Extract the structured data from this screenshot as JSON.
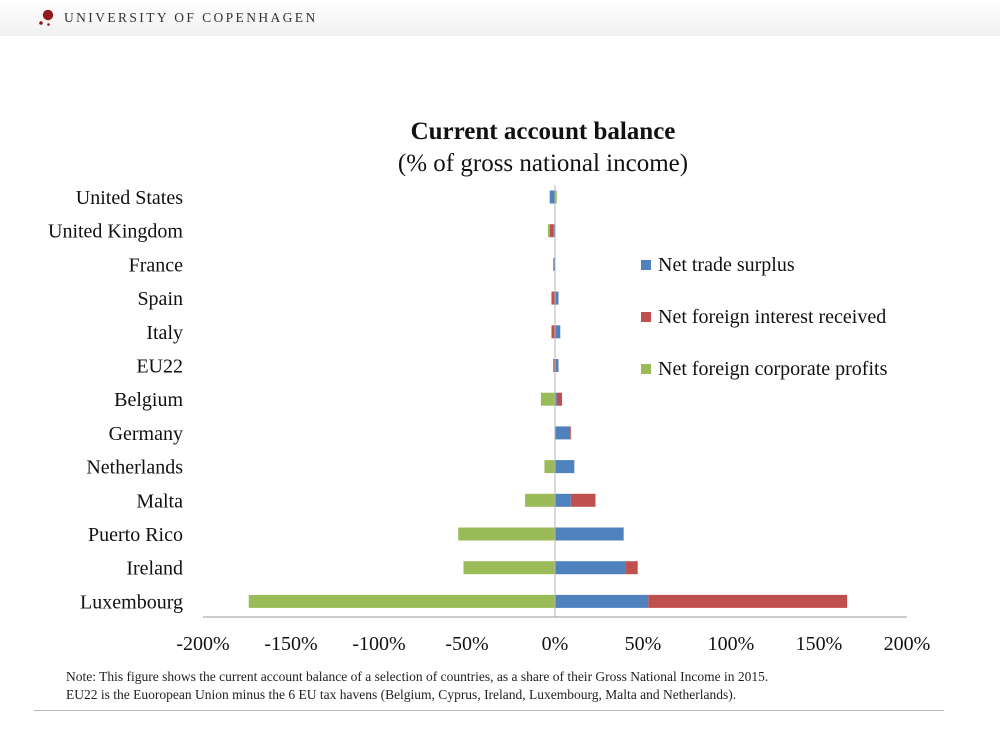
{
  "header": {
    "institution": "UNIVERSITY OF COPENHAGEN",
    "logo_icon": "university-seal-icon"
  },
  "note": {
    "line1": "Note:  This figure shows the current account balance of a selection of countries, as a share of their Gross National Income in 2015.",
    "line2": "EU22 is the Euoropean Union minus the 6 EU tax havens (Belgium, Cyprus, Ireland, Luxembourg, Malta and Netherlands)."
  },
  "chart_data": {
    "type": "bar",
    "orientation": "horizontal",
    "stacked": true,
    "title": "Current account balance",
    "subtitle": "(% of gross national income)",
    "categories": [
      "United States",
      "United Kingdom",
      "France",
      "Spain",
      "Italy",
      "EU22",
      "Belgium",
      "Germany",
      "Netherlands",
      "Malta",
      "Puerto Rico",
      "Ireland",
      "Luxembourg"
    ],
    "series": [
      {
        "name": "Net trade surplus",
        "color": "#4f81bd",
        "values": [
          -3,
          -1,
          -1,
          2,
          3,
          2,
          1,
          8,
          11,
          9,
          39,
          40,
          53
        ]
      },
      {
        "name": "Net foreign interest received",
        "color": "#c0504d",
        "values": [
          0,
          -2,
          0,
          -2,
          -2,
          -1,
          3,
          1,
          0,
          14,
          0,
          7,
          113
        ]
      },
      {
        "name": "Net foreign corporate profits",
        "color": "#9bbb59",
        "values": [
          1,
          -1,
          0,
          0,
          0,
          0,
          -8,
          0,
          -6,
          -17,
          -55,
          -52,
          -174
        ]
      }
    ],
    "xlim": [
      -200,
      200
    ],
    "xticks": [
      "-200%",
      "-150%",
      "-100%",
      "-50%",
      "0%",
      "50%",
      "100%",
      "150%",
      "200%"
    ],
    "legend_position": "right",
    "grid": false
  }
}
